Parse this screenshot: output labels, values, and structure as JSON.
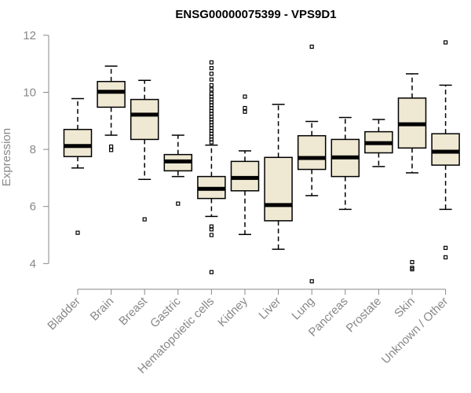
{
  "chart_data": {
    "type": "boxplot",
    "title": "ENSG00000075399 - VPS9D1",
    "xlabel": "",
    "ylabel": "Expression",
    "ylim": [
      3.1,
      12.3
    ],
    "yticks": [
      4,
      6,
      8,
      10,
      12
    ],
    "box_color": "#efe8d2",
    "categories": [
      "Bladder",
      "Brain",
      "Breast",
      "Gastric",
      "Hematopoietic cells",
      "Kidney",
      "Liver",
      "Lung",
      "Pancreas",
      "Prostate",
      "Skin",
      "Unknown / Other"
    ],
    "boxes": [
      {
        "name": "Bladder",
        "whislo": 7.35,
        "q1": 7.75,
        "med": 8.12,
        "q3": 8.7,
        "whishi": 9.78,
        "fliers": [
          5.08
        ]
      },
      {
        "name": "Brain",
        "whislo": 8.5,
        "q1": 9.48,
        "med": 10.02,
        "q3": 10.38,
        "whishi": 10.92,
        "fliers": [
          8.1,
          7.98
        ]
      },
      {
        "name": "Breast",
        "whislo": 6.95,
        "q1": 8.35,
        "med": 9.22,
        "q3": 9.75,
        "whishi": 10.42,
        "fliers": [
          5.55
        ]
      },
      {
        "name": "Gastric",
        "whislo": 7.05,
        "q1": 7.25,
        "med": 7.58,
        "q3": 7.82,
        "whishi": 8.5,
        "fliers": [
          6.1
        ]
      },
      {
        "name": "Hematopoietic cells",
        "whislo": 5.65,
        "q1": 6.28,
        "med": 6.62,
        "q3": 7.05,
        "whishi": 8.15,
        "fliers": [
          11.05,
          10.85,
          10.65,
          10.45,
          10.25,
          10.1,
          9.95,
          9.85,
          9.75,
          9.65,
          9.55,
          9.45,
          9.35,
          9.25,
          9.15,
          9.05,
          8.95,
          8.85,
          8.75,
          8.65,
          8.55,
          8.45,
          8.35,
          8.25,
          5.3,
          5.2,
          5.0,
          3.7
        ]
      },
      {
        "name": "Kidney",
        "whislo": 5.02,
        "q1": 6.55,
        "med": 7.0,
        "q3": 7.58,
        "whishi": 7.95,
        "fliers": [
          9.85,
          9.45,
          9.32
        ]
      },
      {
        "name": "Liver",
        "whislo": 4.5,
        "q1": 5.5,
        "med": 6.05,
        "q3": 7.72,
        "whishi": 9.58,
        "fliers": []
      },
      {
        "name": "Lung",
        "whislo": 6.38,
        "q1": 7.3,
        "med": 7.7,
        "q3": 8.48,
        "whishi": 8.98,
        "fliers": [
          11.6,
          3.38
        ]
      },
      {
        "name": "Pancreas",
        "whislo": 5.9,
        "q1": 7.05,
        "med": 7.72,
        "q3": 8.35,
        "whishi": 9.12,
        "fliers": []
      },
      {
        "name": "Prostate",
        "whislo": 7.4,
        "q1": 7.88,
        "med": 8.22,
        "q3": 8.62,
        "whishi": 9.05,
        "fliers": []
      },
      {
        "name": "Skin",
        "whislo": 7.18,
        "q1": 8.05,
        "med": 8.88,
        "q3": 9.8,
        "whishi": 10.65,
        "fliers": [
          4.05,
          3.85,
          3.8
        ]
      },
      {
        "name": "Unknown / Other",
        "whislo": 5.9,
        "q1": 7.45,
        "med": 7.92,
        "q3": 8.55,
        "whishi": 10.25,
        "fliers": [
          11.75,
          4.55,
          4.22
        ]
      }
    ]
  }
}
